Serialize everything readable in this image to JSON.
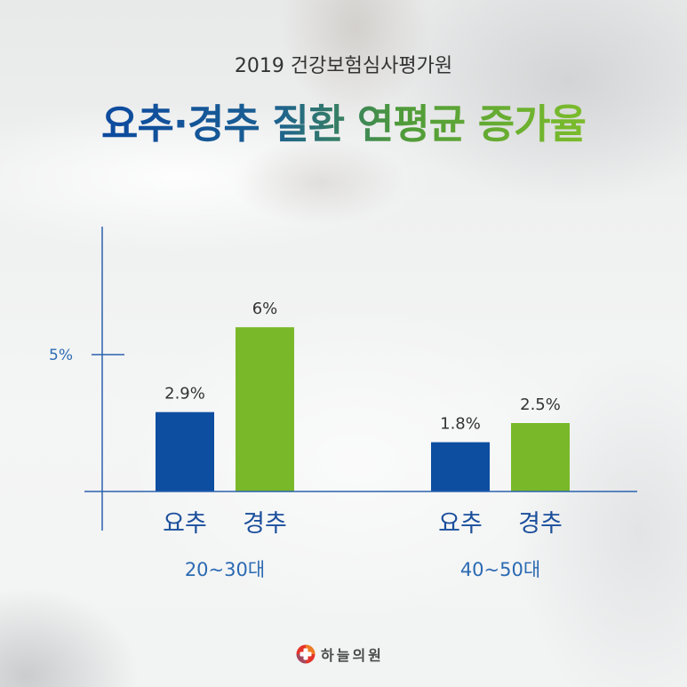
{
  "chart_data": {
    "type": "bar",
    "subtitle": "2019 건강보험심사평가원",
    "title": "요추·경추 질환 연평균 증가율",
    "categories": [
      "20~30대",
      "40~50대"
    ],
    "series": [
      {
        "name": "요추",
        "values": [
          2.9,
          1.8
        ],
        "labels": [
          "2.9%",
          "1.8%"
        ],
        "color": "#0d4ea1"
      },
      {
        "name": "경추",
        "values": [
          6,
          2.5
        ],
        "labels": [
          "6%",
          "2.5%"
        ],
        "color": "#79b829"
      }
    ],
    "yticks": [
      5
    ],
    "ytick_labels": [
      "5%"
    ],
    "ylim": [
      0,
      10
    ],
    "grid": false
  },
  "colors": {
    "title_gradient": [
      "#0c4a9f",
      "#1b5f92",
      "#4f9b3a",
      "#7cbc2b"
    ],
    "axis": "#2a62ad"
  },
  "logo": {
    "text": "하늘의원",
    "icon": "red-cross-icon",
    "color": "#e3342a"
  }
}
